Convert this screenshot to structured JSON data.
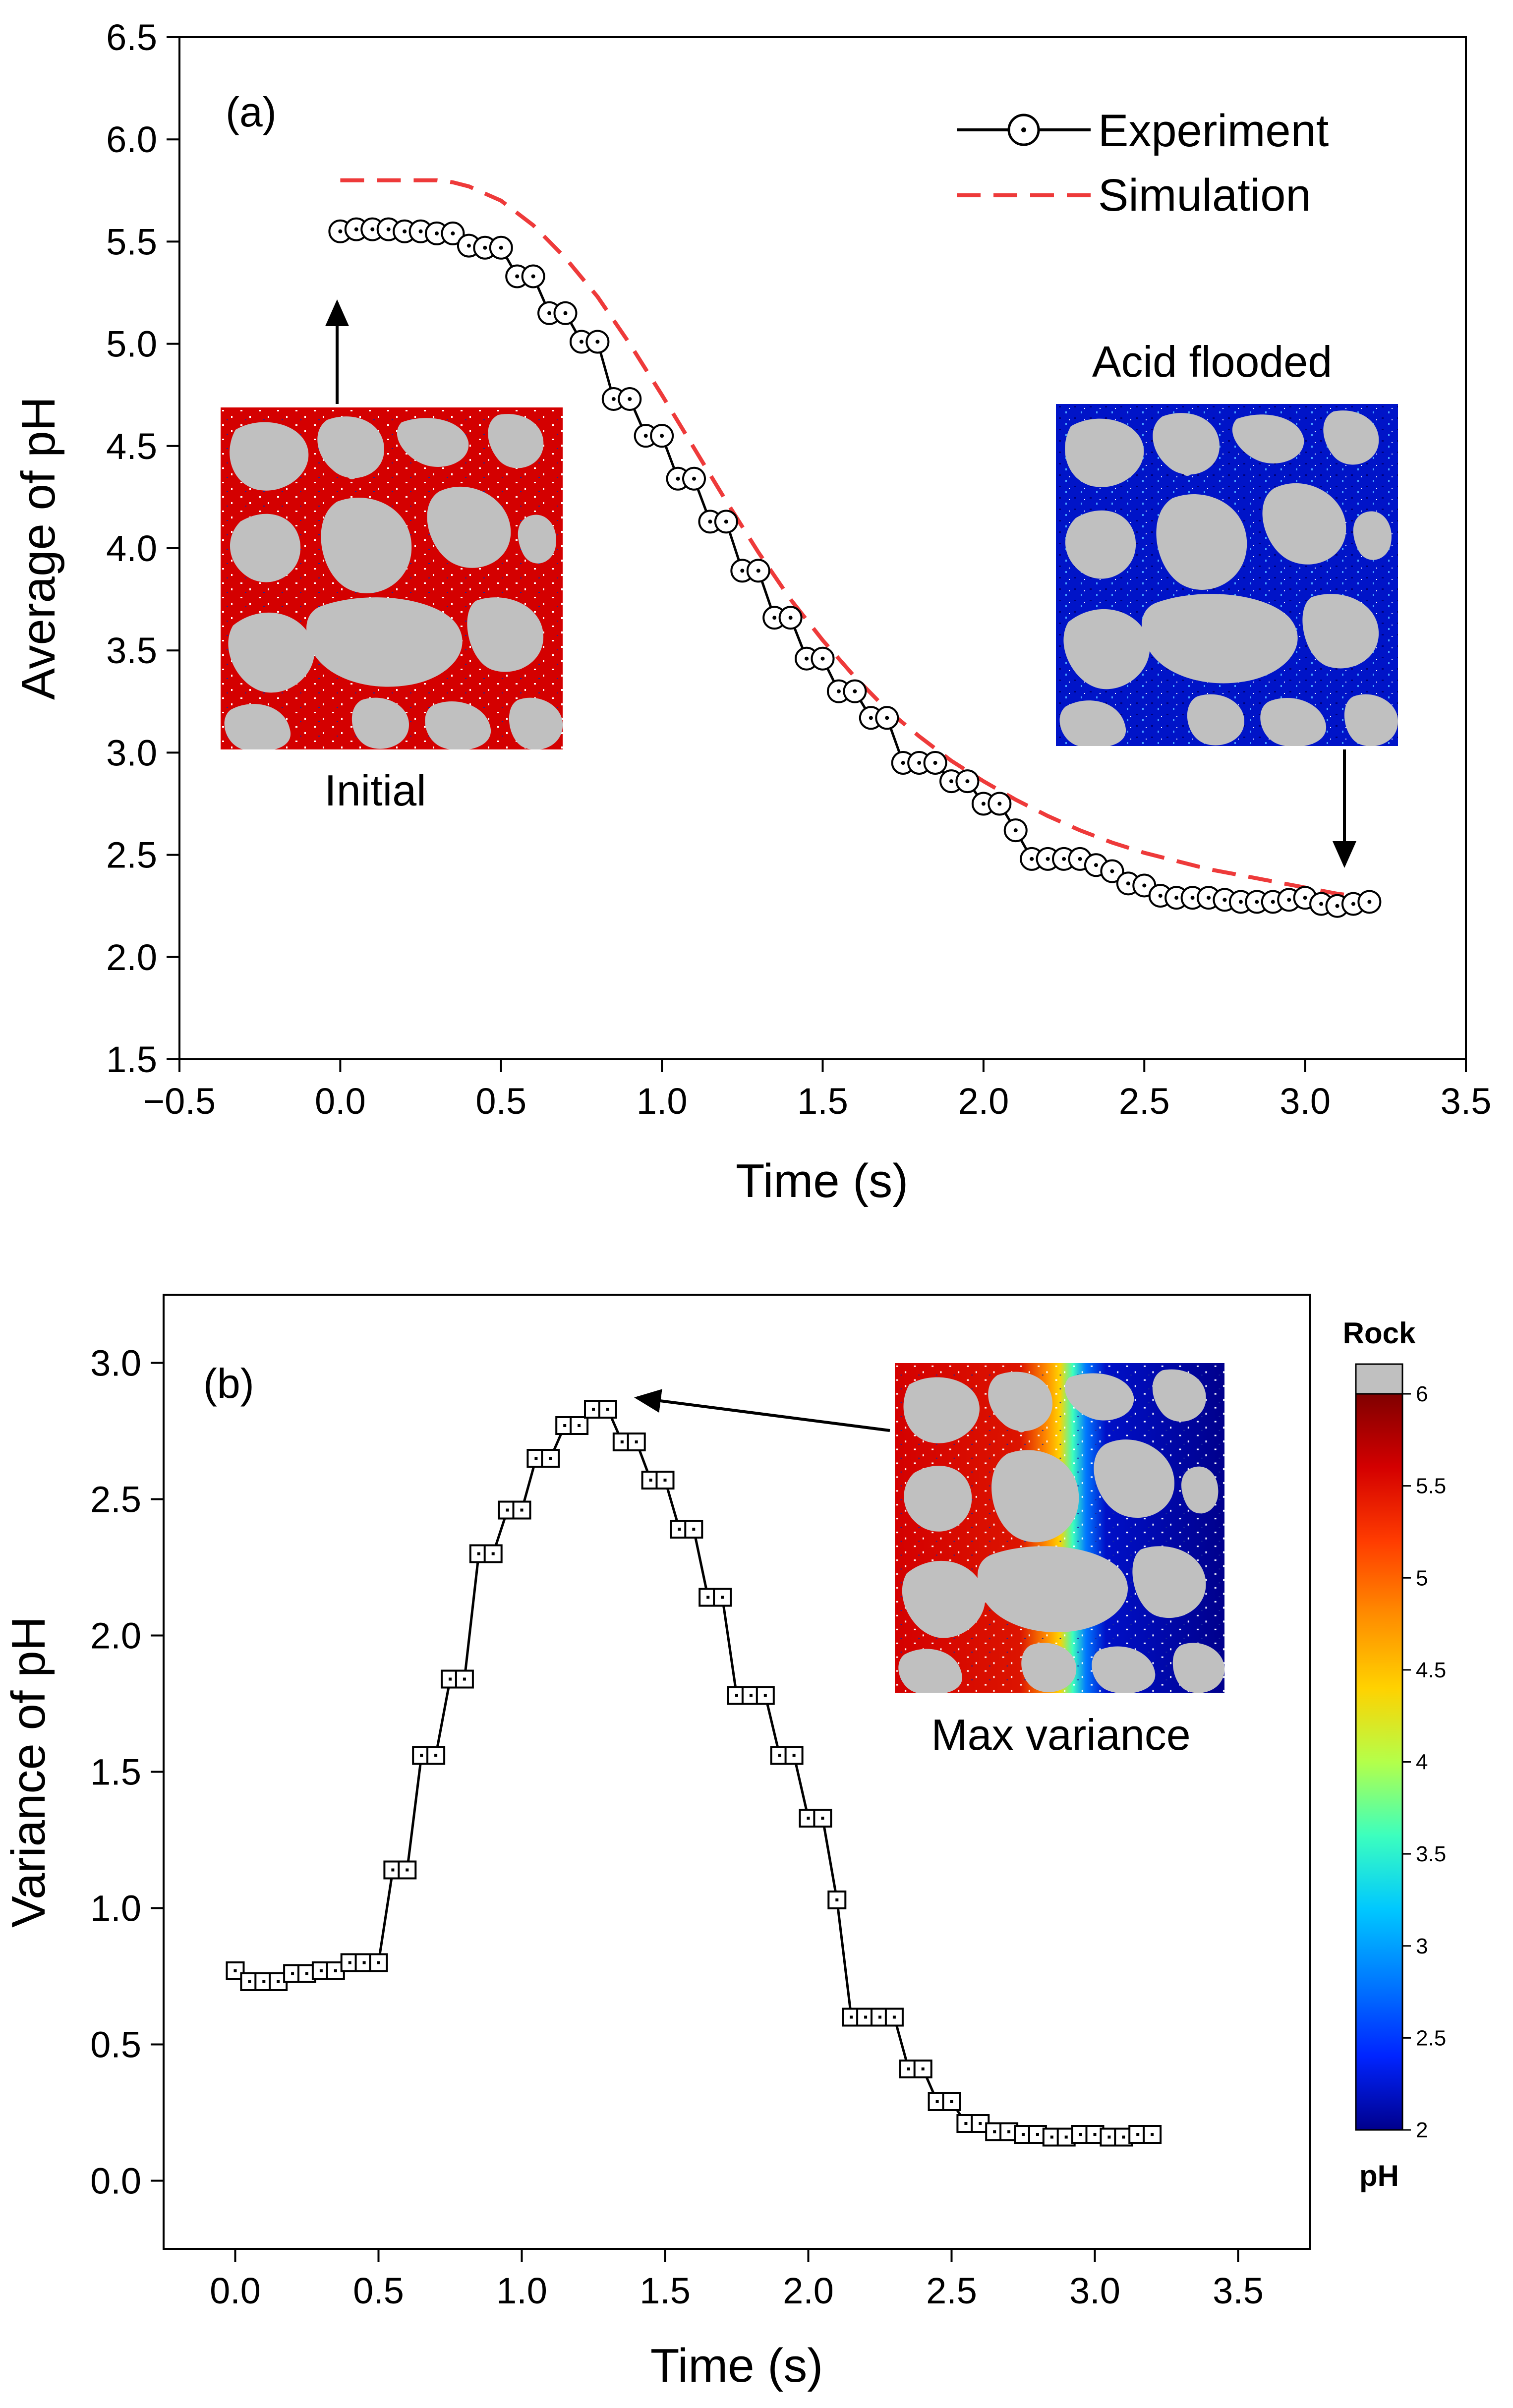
{
  "chart_data": [
    {
      "type": "line",
      "panel_label": "(a)",
      "xlabel": "Time (s)",
      "ylabel": "Average of pH",
      "xlim": [
        -0.5,
        3.5
      ],
      "ylim": [
        1.5,
        6.5
      ],
      "xticks": [
        -0.5,
        0.0,
        0.5,
        1.0,
        1.5,
        2.0,
        2.5,
        3.0,
        3.5
      ],
      "xtick_labels": [
        "−0.5",
        "0.0",
        "0.5",
        "1.0",
        "1.5",
        "2.0",
        "2.5",
        "3.0",
        "3.5"
      ],
      "yticks": [
        1.5,
        2.0,
        2.5,
        3.0,
        3.5,
        4.0,
        4.5,
        5.0,
        5.5,
        6.0,
        6.5
      ],
      "ytick_labels": [
        "1.5",
        "2.0",
        "2.5",
        "3.0",
        "3.5",
        "4.0",
        "4.5",
        "5.0",
        "5.5",
        "6.0",
        "6.5"
      ],
      "legend_position": "top-right",
      "series": [
        {
          "name": "Experiment",
          "style": "solid-line-circle-markers",
          "color": "#000000",
          "x": [
            0.0,
            0.05,
            0.1,
            0.15,
            0.2,
            0.25,
            0.3,
            0.35,
            0.4,
            0.45,
            0.5,
            0.55,
            0.6,
            0.65,
            0.7,
            0.75,
            0.8,
            0.85,
            0.9,
            0.95,
            1.0,
            1.05,
            1.1,
            1.15,
            1.2,
            1.25,
            1.3,
            1.35,
            1.4,
            1.45,
            1.5,
            1.55,
            1.6,
            1.65,
            1.7,
            1.75,
            1.8,
            1.85,
            1.9,
            1.95,
            2.0,
            2.05,
            2.1,
            2.15,
            2.2,
            2.25,
            2.3,
            2.35,
            2.4,
            2.45,
            2.5,
            2.55,
            2.6,
            2.65,
            2.7,
            2.75,
            2.8,
            2.85,
            2.9,
            2.95,
            3.0,
            3.05,
            3.1,
            3.15,
            3.2
          ],
          "y": [
            5.55,
            5.56,
            5.56,
            5.56,
            5.55,
            5.55,
            5.54,
            5.54,
            5.48,
            5.47,
            5.47,
            5.33,
            5.33,
            5.15,
            5.15,
            5.01,
            5.01,
            4.73,
            4.73,
            4.55,
            4.55,
            4.34,
            4.34,
            4.13,
            4.13,
            3.89,
            3.89,
            3.66,
            3.66,
            3.46,
            3.46,
            3.3,
            3.3,
            3.17,
            3.17,
            2.95,
            2.95,
            2.95,
            2.86,
            2.86,
            2.75,
            2.75,
            2.62,
            2.48,
            2.48,
            2.48,
            2.48,
            2.45,
            2.42,
            2.36,
            2.35,
            2.3,
            2.29,
            2.29,
            2.29,
            2.28,
            2.27,
            2.27,
            2.27,
            2.28,
            2.29,
            2.26,
            2.25,
            2.26,
            2.27
          ]
        },
        {
          "name": "Simulation",
          "style": "dashed-line",
          "color": "#ee3a3a",
          "x": [
            0.0,
            0.1,
            0.2,
            0.3,
            0.35,
            0.4,
            0.5,
            0.6,
            0.7,
            0.8,
            0.9,
            1.0,
            1.1,
            1.2,
            1.3,
            1.4,
            1.5,
            1.6,
            1.7,
            1.8,
            1.9,
            2.0,
            2.1,
            2.2,
            2.3,
            2.4,
            2.5,
            2.6,
            2.7,
            2.8,
            2.9,
            3.0,
            3.1,
            3.2,
            3.25
          ],
          "y": [
            5.8,
            5.8,
            5.8,
            5.8,
            5.79,
            5.77,
            5.7,
            5.58,
            5.42,
            5.23,
            5.0,
            4.75,
            4.49,
            4.23,
            3.98,
            3.75,
            3.55,
            3.37,
            3.21,
            3.08,
            2.96,
            2.86,
            2.77,
            2.69,
            2.62,
            2.56,
            2.51,
            2.47,
            2.43,
            2.4,
            2.37,
            2.34,
            2.31,
            2.29,
            2.28
          ]
        }
      ],
      "insets": [
        {
          "caption": "Initial",
          "scheme": "red-acid-free",
          "arrow_to": {
            "x": 0.0,
            "y": 5.55
          }
        },
        {
          "caption": "Acid flooded",
          "scheme": "blue-acidic",
          "arrow_to": {
            "x": 3.2,
            "y": 2.27
          }
        }
      ]
    },
    {
      "type": "line",
      "panel_label": "(b)",
      "xlabel": "Time (s)",
      "ylabel": "Variance of pH",
      "xlim": [
        -0.25,
        3.75
      ],
      "ylim": [
        -0.25,
        3.25
      ],
      "xticks": [
        0.0,
        0.5,
        1.0,
        1.5,
        2.0,
        2.5,
        3.0,
        3.5
      ],
      "xtick_labels": [
        "0.0",
        "0.5",
        "1.0",
        "1.5",
        "2.0",
        "2.5",
        "3.0",
        "3.5"
      ],
      "yticks": [
        0.0,
        0.5,
        1.0,
        1.5,
        2.0,
        2.5,
        3.0
      ],
      "ytick_labels": [
        "0.0",
        "0.5",
        "1.0",
        "1.5",
        "2.0",
        "2.5",
        "3.0"
      ],
      "series": [
        {
          "name": "Variance of pH",
          "style": "solid-line-square-markers",
          "color": "#000000",
          "x": [
            0.0,
            0.05,
            0.1,
            0.15,
            0.2,
            0.25,
            0.3,
            0.35,
            0.4,
            0.45,
            0.5,
            0.55,
            0.6,
            0.65,
            0.7,
            0.75,
            0.8,
            0.85,
            0.9,
            0.95,
            1.0,
            1.05,
            1.1,
            1.15,
            1.2,
            1.25,
            1.3,
            1.35,
            1.4,
            1.45,
            1.5,
            1.55,
            1.6,
            1.65,
            1.7,
            1.75,
            1.8,
            1.85,
            1.9,
            1.95,
            2.0,
            2.05,
            2.1,
            2.15,
            2.2,
            2.25,
            2.3,
            2.35,
            2.4,
            2.45,
            2.5,
            2.55,
            2.6,
            2.65,
            2.7,
            2.75,
            2.8,
            2.85,
            2.9,
            2.95,
            3.0,
            3.05,
            3.1,
            3.15,
            3.2
          ],
          "y": [
            0.77,
            0.73,
            0.73,
            0.73,
            0.76,
            0.76,
            0.77,
            0.77,
            0.8,
            0.8,
            0.8,
            1.14,
            1.14,
            1.56,
            1.56,
            1.84,
            1.84,
            2.3,
            2.3,
            2.46,
            2.46,
            2.65,
            2.65,
            2.77,
            2.77,
            2.83,
            2.83,
            2.71,
            2.71,
            2.57,
            2.57,
            2.39,
            2.39,
            2.14,
            2.14,
            1.78,
            1.78,
            1.78,
            1.56,
            1.56,
            1.33,
            1.33,
            1.03,
            0.6,
            0.6,
            0.6,
            0.6,
            0.41,
            0.41,
            0.29,
            0.29,
            0.21,
            0.21,
            0.18,
            0.18,
            0.17,
            0.17,
            0.16,
            0.16,
            0.17,
            0.17,
            0.16,
            0.16,
            0.17,
            0.17
          ]
        }
      ],
      "insets": [
        {
          "caption": "Max variance",
          "scheme": "mixed-front",
          "arrow_to": {
            "x": 1.3,
            "y": 2.84
          }
        }
      ],
      "colorbar": {
        "title_top": "Rock",
        "title_bottom": "pH",
        "ticks": [
          "6",
          "5.5",
          "5",
          "4.5",
          "4",
          "3.5",
          "3",
          "2.5",
          "2"
        ],
        "tick_values": [
          6,
          5.5,
          5,
          4.5,
          4,
          3.5,
          3,
          2.5,
          2
        ],
        "rock_color": "#c0c0c0",
        "gradient": [
          "#800000",
          "#d40000",
          "#ff3c00",
          "#ff8c00",
          "#ffd200",
          "#b4ff4a",
          "#3cffbe",
          "#00c8ff",
          "#0078ff",
          "#0024ff",
          "#00008c"
        ]
      }
    }
  ]
}
